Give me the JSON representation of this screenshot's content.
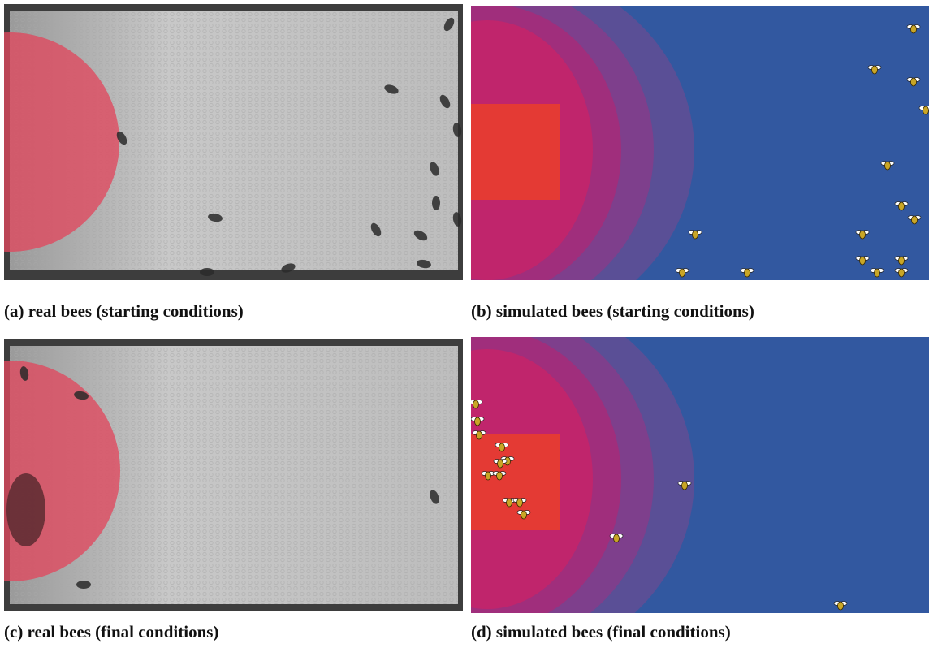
{
  "panels": [
    {
      "caption": "(a) real bees (starting conditions)"
    },
    {
      "caption": "(b) simulated bees (starting conditions)"
    },
    {
      "caption": "(c) real bees (final conditions)"
    },
    {
      "caption": "(d) simulated bees (final conditions)"
    }
  ]
}
